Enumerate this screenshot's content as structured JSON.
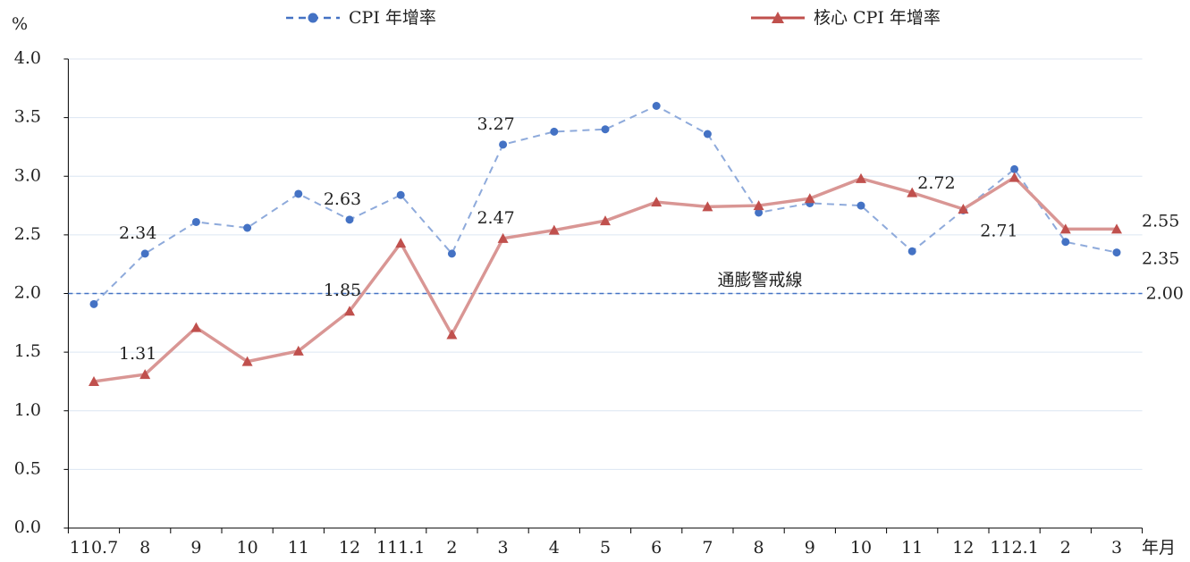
{
  "chart_data": {
    "type": "line",
    "y_label": "%",
    "x_label": "年月",
    "categories": [
      "110.7",
      "8",
      "9",
      "10",
      "11",
      "12",
      "111.1",
      "2",
      "3",
      "4",
      "5",
      "6",
      "7",
      "8",
      "9",
      "10",
      "11",
      "12",
      "112.1",
      "2",
      "3"
    ],
    "series": [
      {
        "name": "CPI 年增率",
        "color": "#4472c4",
        "line_color": "#8eaadb",
        "dashed": true,
        "marker": "circle",
        "values": [
          1.91,
          2.34,
          2.61,
          2.56,
          2.85,
          2.63,
          2.84,
          2.34,
          3.27,
          3.38,
          3.4,
          3.6,
          3.36,
          2.69,
          2.77,
          2.75,
          2.36,
          2.71,
          3.06,
          2.44,
          2.35
        ],
        "value_labels": [
          null,
          "2.34",
          null,
          null,
          null,
          "2.63",
          null,
          null,
          "3.27",
          null,
          null,
          null,
          null,
          null,
          null,
          null,
          null,
          "2.71",
          null,
          null,
          "2.35"
        ]
      },
      {
        "name": "核心 CPI 年增率",
        "color": "#c0504d",
        "line_color": "#d99694",
        "dashed": false,
        "marker": "triangle",
        "values": [
          1.25,
          1.31,
          1.71,
          1.42,
          1.51,
          1.85,
          2.43,
          1.65,
          2.47,
          2.54,
          2.62,
          2.78,
          2.74,
          2.75,
          2.81,
          2.98,
          2.86,
          2.72,
          2.99,
          2.55,
          2.55
        ],
        "value_labels": [
          null,
          "1.31",
          null,
          null,
          null,
          "1.85",
          null,
          null,
          "2.47",
          null,
          null,
          null,
          null,
          null,
          null,
          null,
          null,
          "2.72",
          null,
          null,
          "2.55"
        ]
      }
    ],
    "threshold": {
      "value": 2,
      "label": "2.00",
      "name": "通膨警戒線",
      "color": "#4472c4"
    },
    "ylim": [
      0,
      4
    ],
    "yticks": [
      {
        "value": 0,
        "label": "0.0"
      },
      {
        "value": 0.5,
        "label": "0.5"
      },
      {
        "value": 1,
        "label": "1.0"
      },
      {
        "value": 1.5,
        "label": "1.5"
      },
      {
        "value": 2,
        "label": "2.0"
      },
      {
        "value": 2.5,
        "label": "2.5"
      },
      {
        "value": 3,
        "label": "3.0"
      },
      {
        "value": 3.5,
        "label": "3.5"
      },
      {
        "value": 4,
        "label": "4.0"
      }
    ],
    "grid": true,
    "grid_color": "#dce6f2",
    "legend": "top"
  }
}
